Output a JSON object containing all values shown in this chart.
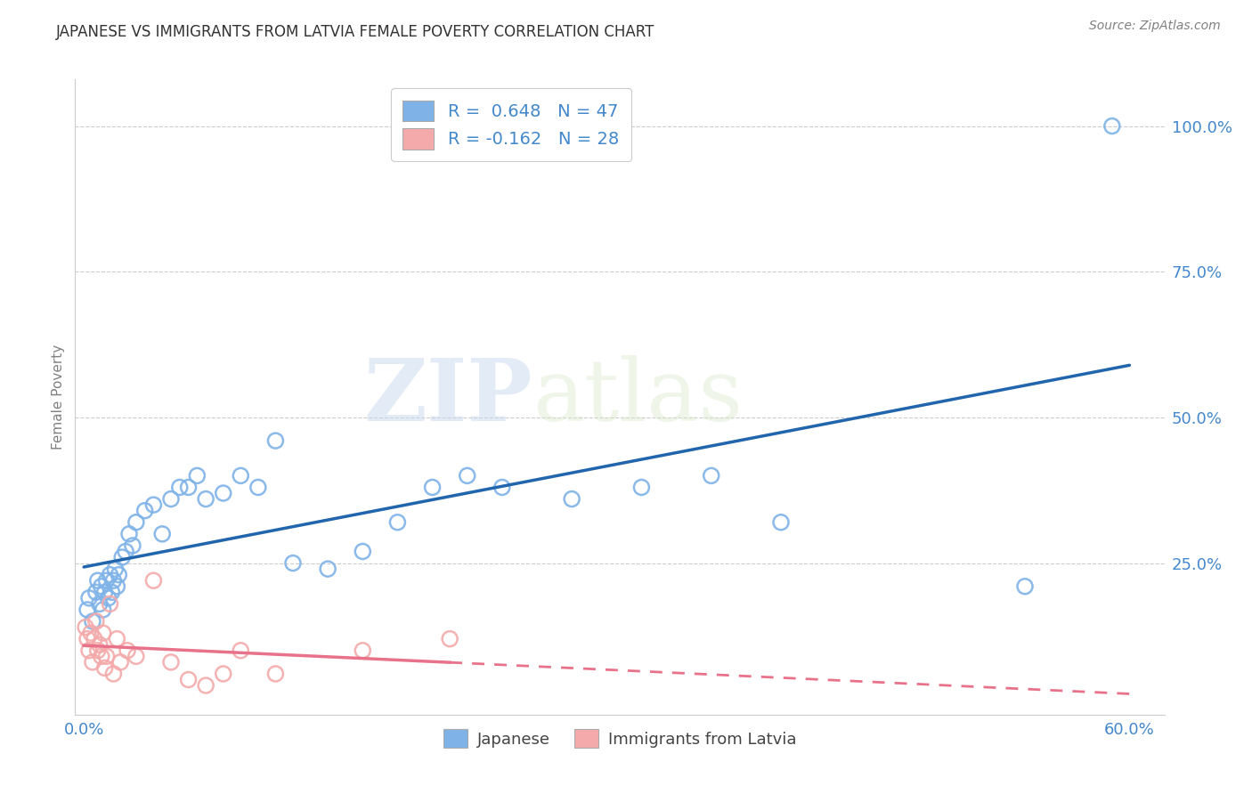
{
  "title": "JAPANESE VS IMMIGRANTS FROM LATVIA FEMALE POVERTY CORRELATION CHART",
  "source": "Source: ZipAtlas.com",
  "ylabel": "Female Poverty",
  "watermark_zip": "ZIP",
  "watermark_atlas": "atlas",
  "xlim": [
    -0.005,
    0.62
  ],
  "ylim": [
    -0.01,
    1.08
  ],
  "xticks": [
    0.0,
    0.1,
    0.2,
    0.3,
    0.4,
    0.5,
    0.6
  ],
  "xtick_labels": [
    "0.0%",
    "",
    "",
    "",
    "",
    "",
    "60.0%"
  ],
  "yticks": [
    0.25,
    0.5,
    0.75,
    1.0
  ],
  "ytick_labels": [
    "25.0%",
    "50.0%",
    "75.0%",
    "100.0%"
  ],
  "blue_color": "#7fb3e8",
  "pink_color": "#f4aaaa",
  "blue_line_color": "#2166ac",
  "pink_line_color": "#e8728a",
  "axis_label_color": "#4488cc",
  "title_color": "#333333",
  "legend_label1": "R =  0.648   N = 47",
  "legend_label2": "R = -0.162   N = 28",
  "legend_bottom_label1": "Japanese",
  "legend_bottom_label2": "Immigrants from Latvia",
  "blue_R": 0.648,
  "blue_N": 47,
  "pink_R": -0.162,
  "pink_N": 28,
  "japanese_x": [
    0.002,
    0.003,
    0.005,
    0.007,
    0.008,
    0.009,
    0.01,
    0.011,
    0.012,
    0.013,
    0.014,
    0.015,
    0.016,
    0.017,
    0.018,
    0.019,
    0.02,
    0.022,
    0.024,
    0.026,
    0.028,
    0.03,
    0.035,
    0.04,
    0.045,
    0.05,
    0.055,
    0.06,
    0.065,
    0.07,
    0.08,
    0.09,
    0.1,
    0.11,
    0.12,
    0.14,
    0.16,
    0.18,
    0.2,
    0.22,
    0.24,
    0.28,
    0.32,
    0.36,
    0.4,
    0.54,
    0.59
  ],
  "japanese_y": [
    0.17,
    0.19,
    0.15,
    0.2,
    0.22,
    0.18,
    0.21,
    0.17,
    0.2,
    0.22,
    0.19,
    0.23,
    0.2,
    0.22,
    0.24,
    0.21,
    0.23,
    0.26,
    0.27,
    0.3,
    0.28,
    0.32,
    0.34,
    0.35,
    0.3,
    0.36,
    0.38,
    0.38,
    0.4,
    0.36,
    0.37,
    0.4,
    0.38,
    0.46,
    0.25,
    0.24,
    0.27,
    0.32,
    0.38,
    0.4,
    0.38,
    0.36,
    0.38,
    0.4,
    0.32,
    0.21,
    1.0
  ],
  "latvia_x": [
    0.001,
    0.002,
    0.003,
    0.004,
    0.005,
    0.006,
    0.007,
    0.008,
    0.009,
    0.01,
    0.011,
    0.012,
    0.013,
    0.015,
    0.017,
    0.019,
    0.021,
    0.025,
    0.03,
    0.04,
    0.05,
    0.06,
    0.07,
    0.08,
    0.09,
    0.11,
    0.16,
    0.21
  ],
  "latvia_y": [
    0.14,
    0.12,
    0.1,
    0.13,
    0.08,
    0.12,
    0.15,
    0.1,
    0.11,
    0.09,
    0.13,
    0.07,
    0.09,
    0.18,
    0.06,
    0.12,
    0.08,
    0.1,
    0.09,
    0.22,
    0.08,
    0.05,
    0.04,
    0.06,
    0.1,
    0.06,
    0.1,
    0.12
  ]
}
